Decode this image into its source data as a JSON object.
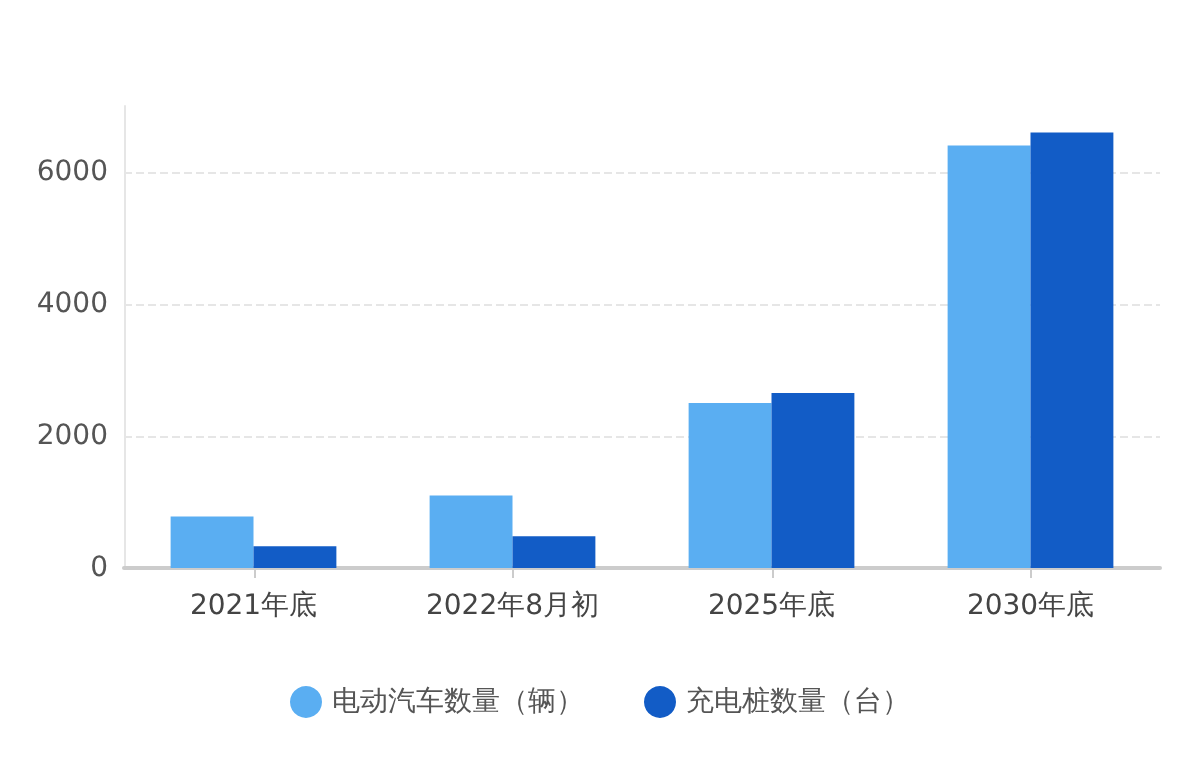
{
  "chart_data": {
    "type": "bar",
    "categories": [
      "2021年底",
      "2022年8月初",
      "2025年底",
      "2030年底"
    ],
    "series": [
      {
        "name": "电动汽车数量（辆）",
        "color": "#5aaef2",
        "values": [
          780,
          1100,
          2500,
          6400
        ]
      },
      {
        "name": "充电桩数量（台）",
        "color": "#125cc6",
        "values": [
          330,
          480,
          2650,
          6600
        ]
      }
    ],
    "ylim": [
      0,
      7000
    ],
    "yticks": [
      0,
      2000,
      4000,
      6000
    ],
    "grid": "y",
    "legend": "bottom"
  }
}
